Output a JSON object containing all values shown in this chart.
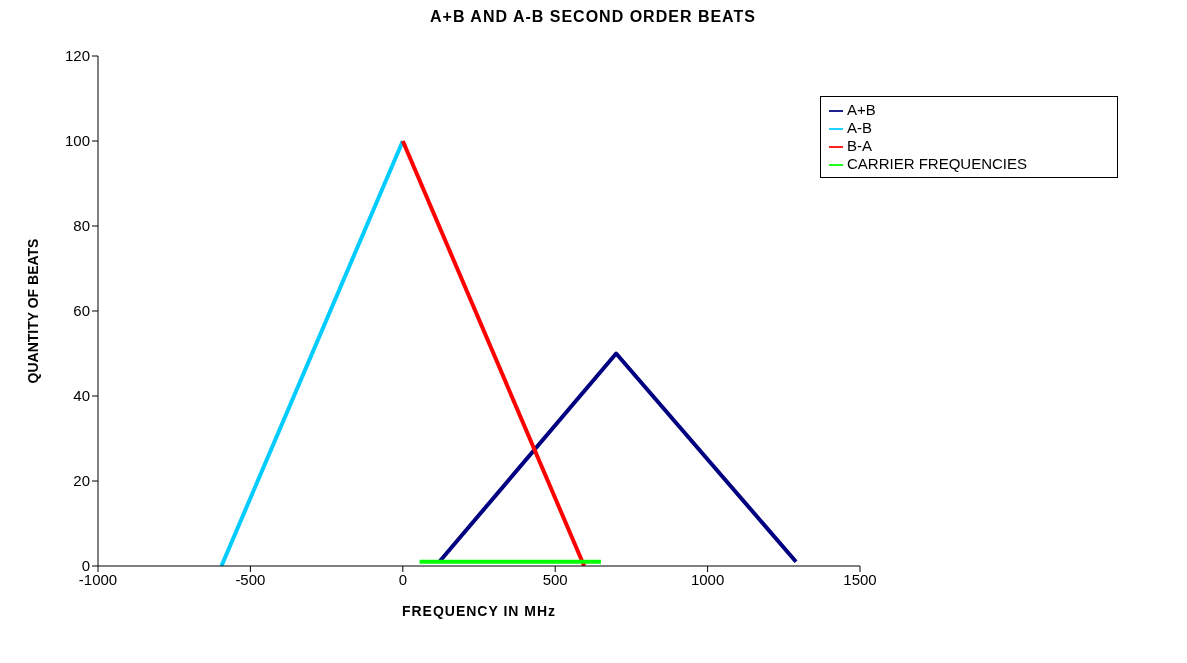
{
  "chart_data": {
    "type": "line",
    "title": "A+B AND A-B SECOND ORDER BEATS",
    "xlabel": "FREQUENCY IN MHz",
    "ylabel": "QUANTITY OF BEATS",
    "xlim": [
      -1000,
      1500
    ],
    "xticks": [
      -1000,
      -500,
      0,
      500,
      1000,
      1500
    ],
    "ylim": [
      0,
      120
    ],
    "yticks": [
      0,
      20,
      40,
      60,
      80,
      100,
      120
    ],
    "grid": false,
    "legend": "top right",
    "marker": "none",
    "line_style": "solid",
    "series": [
      {
        "name": "A+B",
        "color": "#000080",
        "x": [
          120,
          700,
          1290
        ],
        "values": [
          1,
          50,
          1
        ]
      },
      {
        "name": "A-B",
        "color": "#00ccff",
        "x": [
          -595,
          0
        ],
        "values": [
          0,
          100
        ]
      },
      {
        "name": "B-A",
        "color": "#ff0000",
        "x": [
          0,
          595
        ],
        "values": [
          100,
          0
        ]
      },
      {
        "name": "CARRIER FREQUENCIES",
        "color": "#00ff00",
        "x": [
          55,
          650
        ],
        "values": [
          1,
          1
        ]
      }
    ]
  }
}
